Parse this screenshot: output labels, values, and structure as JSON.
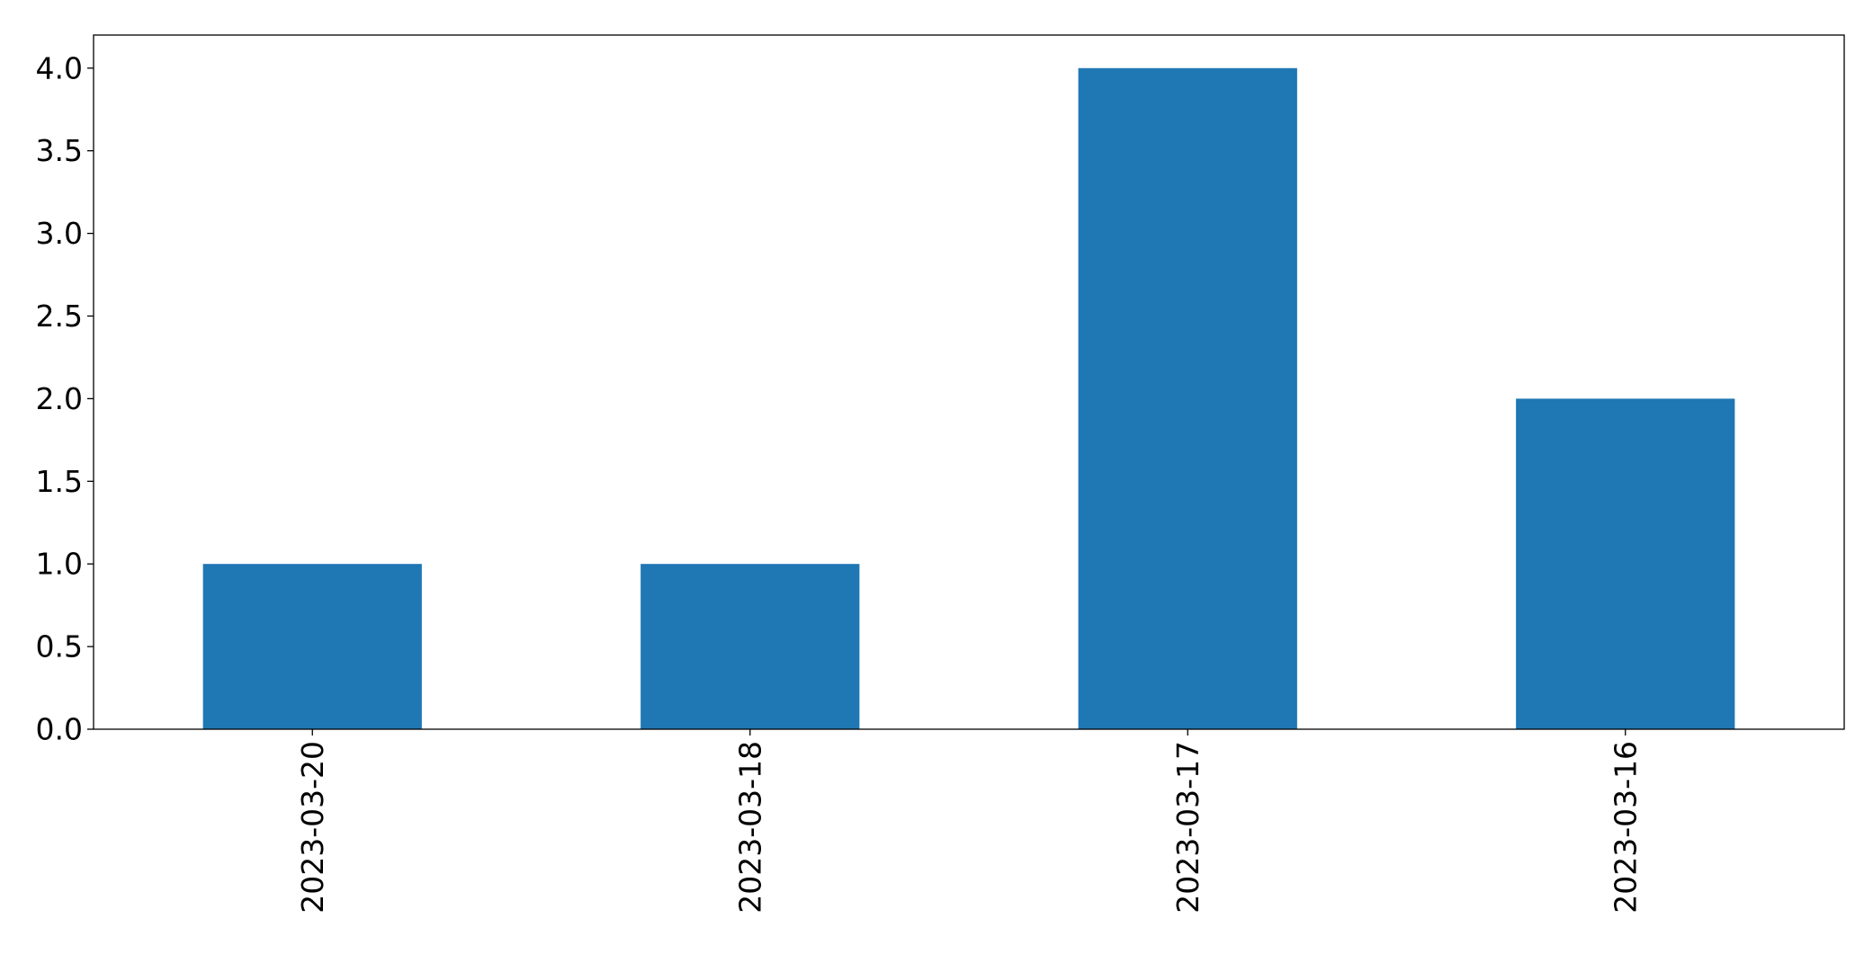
{
  "chart_data": {
    "type": "bar",
    "categories": [
      "2023-03-20",
      "2023-03-18",
      "2023-03-17",
      "2023-03-16"
    ],
    "values": [
      1,
      1,
      4,
      2
    ],
    "title": "",
    "xlabel": "",
    "ylabel": "",
    "ylim": [
      0,
      4.2
    ],
    "yticks": [
      0.0,
      0.5,
      1.0,
      1.5,
      2.0,
      2.5,
      3.0,
      3.5,
      4.0
    ],
    "ytick_labels": [
      "0.0",
      "0.5",
      "1.0",
      "1.5",
      "2.0",
      "2.5",
      "3.0",
      "3.5",
      "4.0"
    ],
    "x_tick_rotation": "vertical",
    "grid": false,
    "legend": false,
    "bar_color": "#1f77b4"
  }
}
